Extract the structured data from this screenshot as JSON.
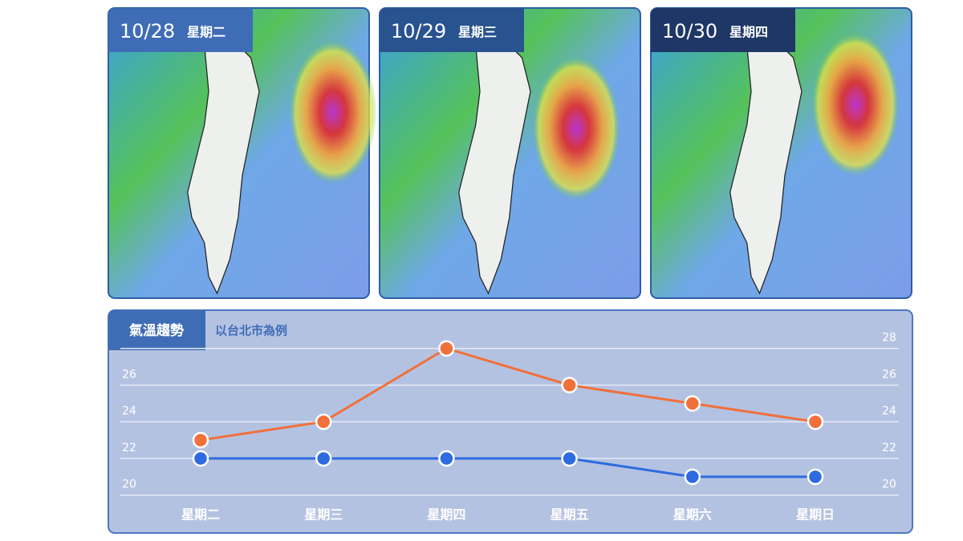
{
  "panels": [
    {
      "date": "10/28",
      "weekday": "星期二"
    },
    {
      "date": "10/29",
      "weekday": "星期三"
    },
    {
      "date": "10/30",
      "weekday": "星期四"
    }
  ],
  "chart_data": {
    "type": "line",
    "title": "氣溫趨勢",
    "subtitle": "以台北市為例",
    "categories": [
      "星期二",
      "星期三",
      "星期四",
      "星期五",
      "星期六",
      "星期日"
    ],
    "series": [
      {
        "color": "#f0703a",
        "values": [
          23,
          24,
          28,
          26,
          25,
          24
        ]
      },
      {
        "color": "#2e6be0",
        "values": [
          22,
          22,
          22,
          22,
          21,
          21
        ]
      }
    ],
    "ylim": [
      19.9,
      29.3
    ],
    "yticks": [
      20,
      22,
      24,
      26
    ],
    "y2lim": [
      19.9,
      29.3
    ],
    "y2ticks": [
      20,
      22,
      24,
      26,
      28
    ],
    "grid": true
  }
}
